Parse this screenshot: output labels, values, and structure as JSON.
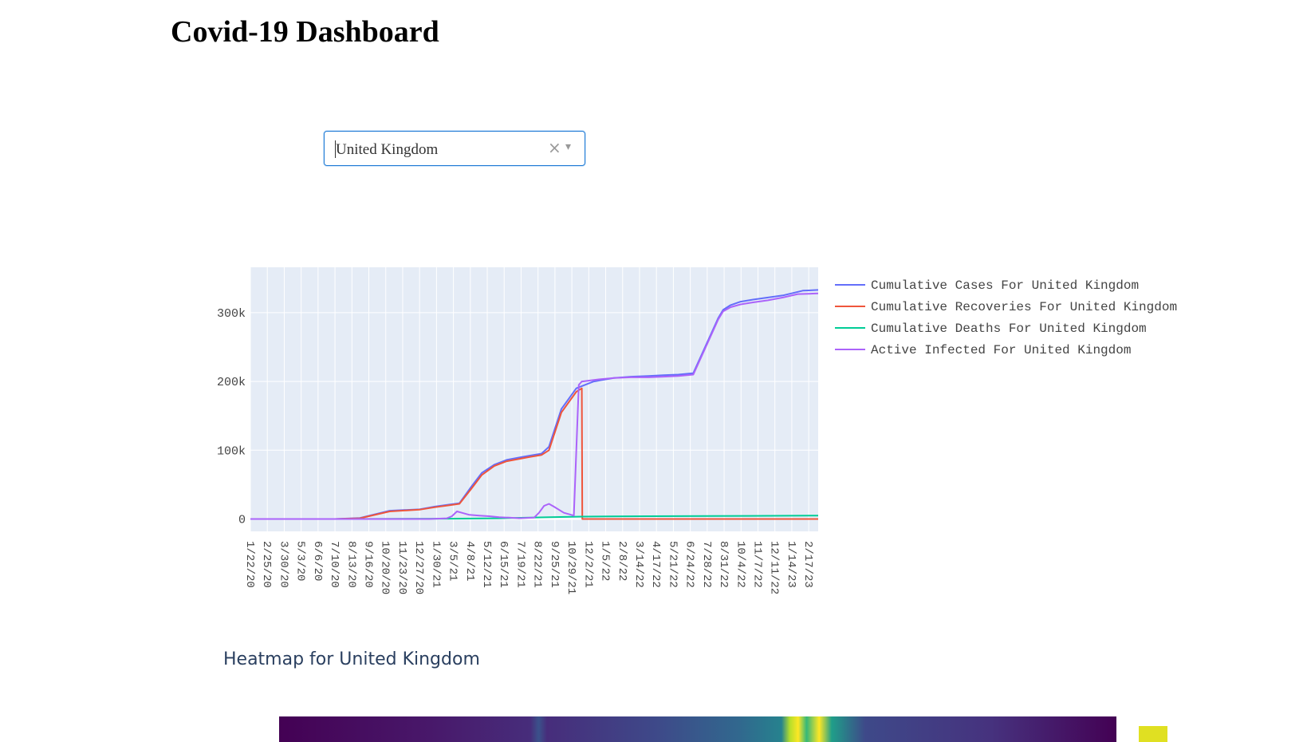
{
  "page": {
    "title": "Covid-19 Dashboard"
  },
  "country_select": {
    "value": "United Kingdom",
    "clear_glyph": "×",
    "arrow_glyph": "▾"
  },
  "heatmap": {
    "title": "Heatmap for United Kingdom"
  },
  "colors": {
    "plot_bg": "#e5ecf6",
    "axis_text": "#444444",
    "heat_title": "#2a3f5f"
  },
  "chart_data": {
    "type": "line",
    "x_tick_labels": [
      "1/22/20",
      "2/25/20",
      "3/30/20",
      "5/3/20",
      "6/6/20",
      "7/10/20",
      "8/13/20",
      "9/16/20",
      "10/20/20",
      "11/23/20",
      "12/27/20",
      "1/30/21",
      "3/5/21",
      "4/8/21",
      "5/12/21",
      "6/15/21",
      "7/19/21",
      "8/22/21",
      "9/25/21",
      "10/29/21",
      "12/2/21",
      "1/5/22",
      "2/8/22",
      "3/14/22",
      "4/17/22",
      "5/21/22",
      "6/24/22",
      "7/28/22",
      "8/31/22",
      "10/4/22",
      "11/7/22",
      "12/11/22",
      "1/14/23",
      "2/17/23"
    ],
    "y_ticks": [
      0,
      100000,
      200000,
      300000
    ],
    "y_tick_labels": [
      "0",
      "100k",
      "200k",
      "300k"
    ],
    "ylim": [
      -18000,
      366000
    ],
    "xlim": [
      0,
      1141
    ],
    "grid": true,
    "legend_position": "top-right",
    "series": [
      {
        "name": "Cumulative Cases For United Kingdom",
        "color": "#636efa",
        "x": [
          0,
          170,
          220,
          280,
          340,
          370,
          400,
          420,
          445,
          465,
          490,
          515,
          545,
          560,
          585,
          600,
          625,
          655,
          690,
          730,
          765,
          800,
          830,
          860,
          890,
          940,
          950,
          965,
          985,
          1010,
          1040,
          1070,
          1110,
          1141
        ],
        "y": [
          0,
          0,
          1500,
          12000,
          14000,
          18000,
          21000,
          23000,
          48000,
          67000,
          79000,
          86000,
          90000,
          92000,
          95000,
          105000,
          160000,
          190000,
          200000,
          205000,
          207000,
          208000,
          209000,
          210000,
          212000,
          292000,
          304000,
          311000,
          316000,
          319000,
          322000,
          325000,
          332000,
          333000
        ]
      },
      {
        "name": "Cumulative Recoveries For United Kingdom",
        "color": "#ef553b",
        "x": [
          0,
          170,
          220,
          280,
          340,
          370,
          400,
          420,
          445,
          465,
          490,
          515,
          545,
          560,
          585,
          600,
          625,
          655,
          666,
          667,
          1141
        ],
        "y": [
          0,
          0,
          1000,
          11000,
          13500,
          17000,
          20000,
          22000,
          45000,
          64000,
          77000,
          84000,
          88000,
          90000,
          93000,
          100000,
          155000,
          185000,
          190000,
          0,
          0
        ]
      },
      {
        "name": "Cumulative Deaths For United Kingdom",
        "color": "#00cc96",
        "x": [
          0,
          200,
          400,
          500,
          600,
          666,
          800,
          1000,
          1141
        ],
        "y": [
          0,
          0,
          500,
          1000,
          2500,
          3500,
          4000,
          4500,
          5000
        ]
      },
      {
        "name": "Active Infected For United Kingdom",
        "color": "#ab63fa",
        "x": [
          0,
          360,
          395,
          405,
          415,
          425,
          440,
          460,
          480,
          500,
          520,
          540,
          570,
          580,
          590,
          600,
          610,
          630,
          650,
          660,
          666,
          667,
          700,
          730,
          765,
          800,
          830,
          860,
          890,
          940,
          950,
          965,
          985,
          1010,
          1040,
          1070,
          1100,
          1141
        ],
        "y": [
          0,
          0,
          1000,
          4000,
          11000,
          9000,
          6000,
          5000,
          4000,
          2500,
          2000,
          1000,
          2000,
          9000,
          19000,
          22000,
          18000,
          9000,
          5000,
          195000,
          200000,
          200000,
          203000,
          205000,
          206000,
          206000,
          207000,
          208000,
          210000,
          290000,
          302000,
          308000,
          312000,
          315000,
          318000,
          322000,
          327000,
          328000
        ]
      }
    ]
  }
}
